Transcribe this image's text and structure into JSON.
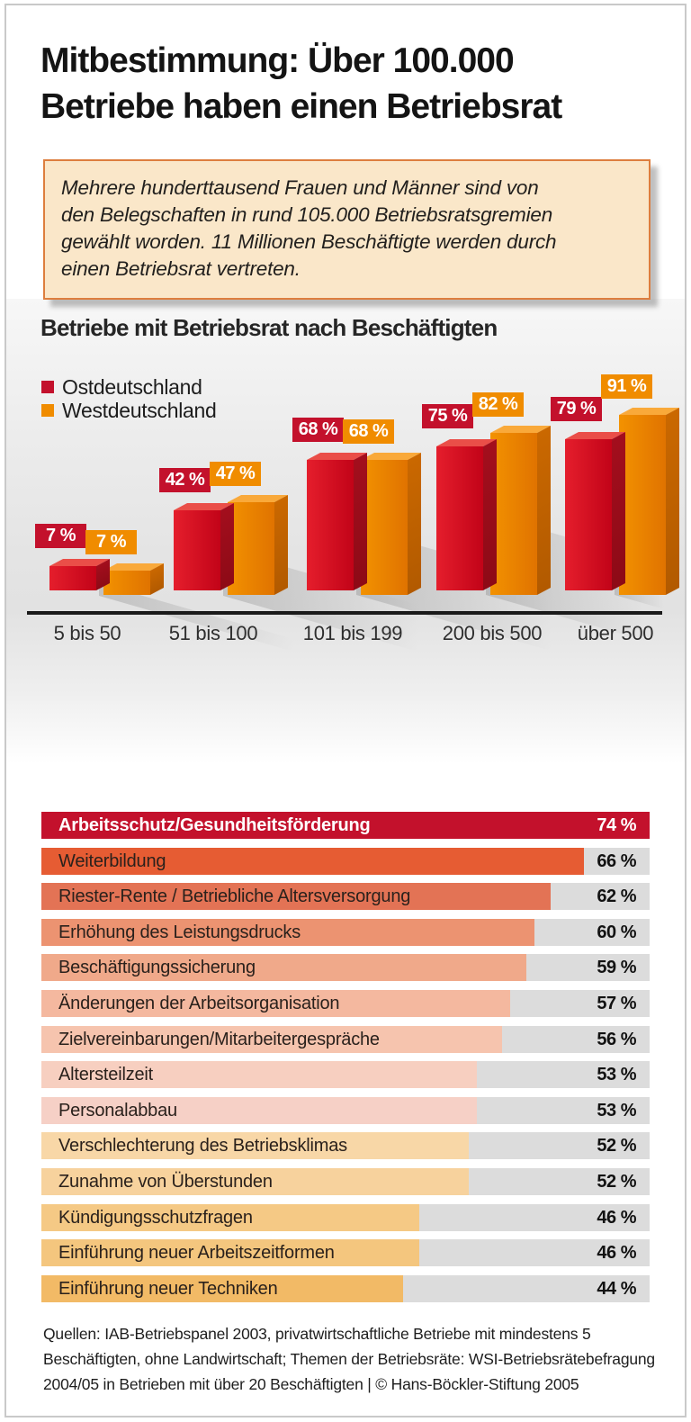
{
  "header": {
    "title": "Mitbestimmung: Über 100.000\nBetriebe haben einen Betriebsrat"
  },
  "intro": {
    "text": "Mehrere hunderttausend Frauen und Männer sind von den Belegschaften in rund 105.000 Betriebsratsgremien gewählt worden. 11 Millionen Beschäftigte werden durch einen Betriebsrat vertreten."
  },
  "chart_data": [
    {
      "type": "bar",
      "style": "3d-paired-columns",
      "title": "Betriebe mit Betriebsrat nach Beschäftigten",
      "categories": [
        "5 bis 50",
        "51 bis 100",
        "101 bis 199",
        "200 bis 500",
        "über 500"
      ],
      "series": [
        {
          "name": "Ostdeutschland",
          "color": "#c3112c",
          "values": [
            7,
            42,
            68,
            75,
            79
          ]
        },
        {
          "name": "Westdeutschland",
          "color": "#f08c00",
          "values": [
            7,
            47,
            68,
            82,
            91
          ]
        }
      ],
      "value_suffix": " %",
      "ylim": [
        0,
        100
      ],
      "grid": false,
      "legend_position": "top-left"
    },
    {
      "type": "bar",
      "orientation": "horizontal",
      "xmax": 74,
      "track_color": "#dcdcdc",
      "value_suffix": " %",
      "rows": [
        {
          "label": "Arbeitsschutz/Gesundheitsförderung",
          "value": 74,
          "color": "#c3112c",
          "highlight": true
        },
        {
          "label": "Weiterbildung",
          "value": 66,
          "color": "#e65c33"
        },
        {
          "label": "Riester-Rente / Betriebliche Altersversorgung",
          "value": 62,
          "color": "#e37355"
        },
        {
          "label": "Erhöhung des Leistungsdrucks",
          "value": 60,
          "color": "#ec9371"
        },
        {
          "label": "Beschäftigungssicherung",
          "value": 59,
          "color": "#f0a98a"
        },
        {
          "label": "Änderungen der Arbeitsorganisation",
          "value": 57,
          "color": "#f4b89f"
        },
        {
          "label": "Zielvereinbarungen/Mitarbeitergespräche",
          "value": 56,
          "color": "#f6c4ae"
        },
        {
          "label": "Altersteilzeit",
          "value": 53,
          "color": "#f7cfc0"
        },
        {
          "label": "Personalabbau",
          "value": 53,
          "color": "#f6d0c6"
        },
        {
          "label": "Verschlechterung des Betriebsklimas",
          "value": 52,
          "color": "#f8d7a7"
        },
        {
          "label": "Zunahme von Überstunden",
          "value": 52,
          "color": "#f7d29d"
        },
        {
          "label": "Kündigungsschutzfragen",
          "value": 46,
          "color": "#f5c985"
        },
        {
          "label": "Einführung neuer Arbeitszeitformen",
          "value": 46,
          "color": "#f4c67e"
        },
        {
          "label": "Einführung neuer Techniken",
          "value": 44,
          "color": "#f2ba66"
        }
      ]
    }
  ],
  "source": {
    "text": "Quellen: IAB-Betriebspanel 2003, privatwirtschaftliche Betriebe mit mindestens 5 Beschäftigten, ohne Landwirtschaft; Themen der Betriebsräte: WSI-Betriebsrätebefragung 2004/05 in Betrieben mit über 20 Beschäftigten | © Hans-Böckler-Stiftung 2005"
  }
}
